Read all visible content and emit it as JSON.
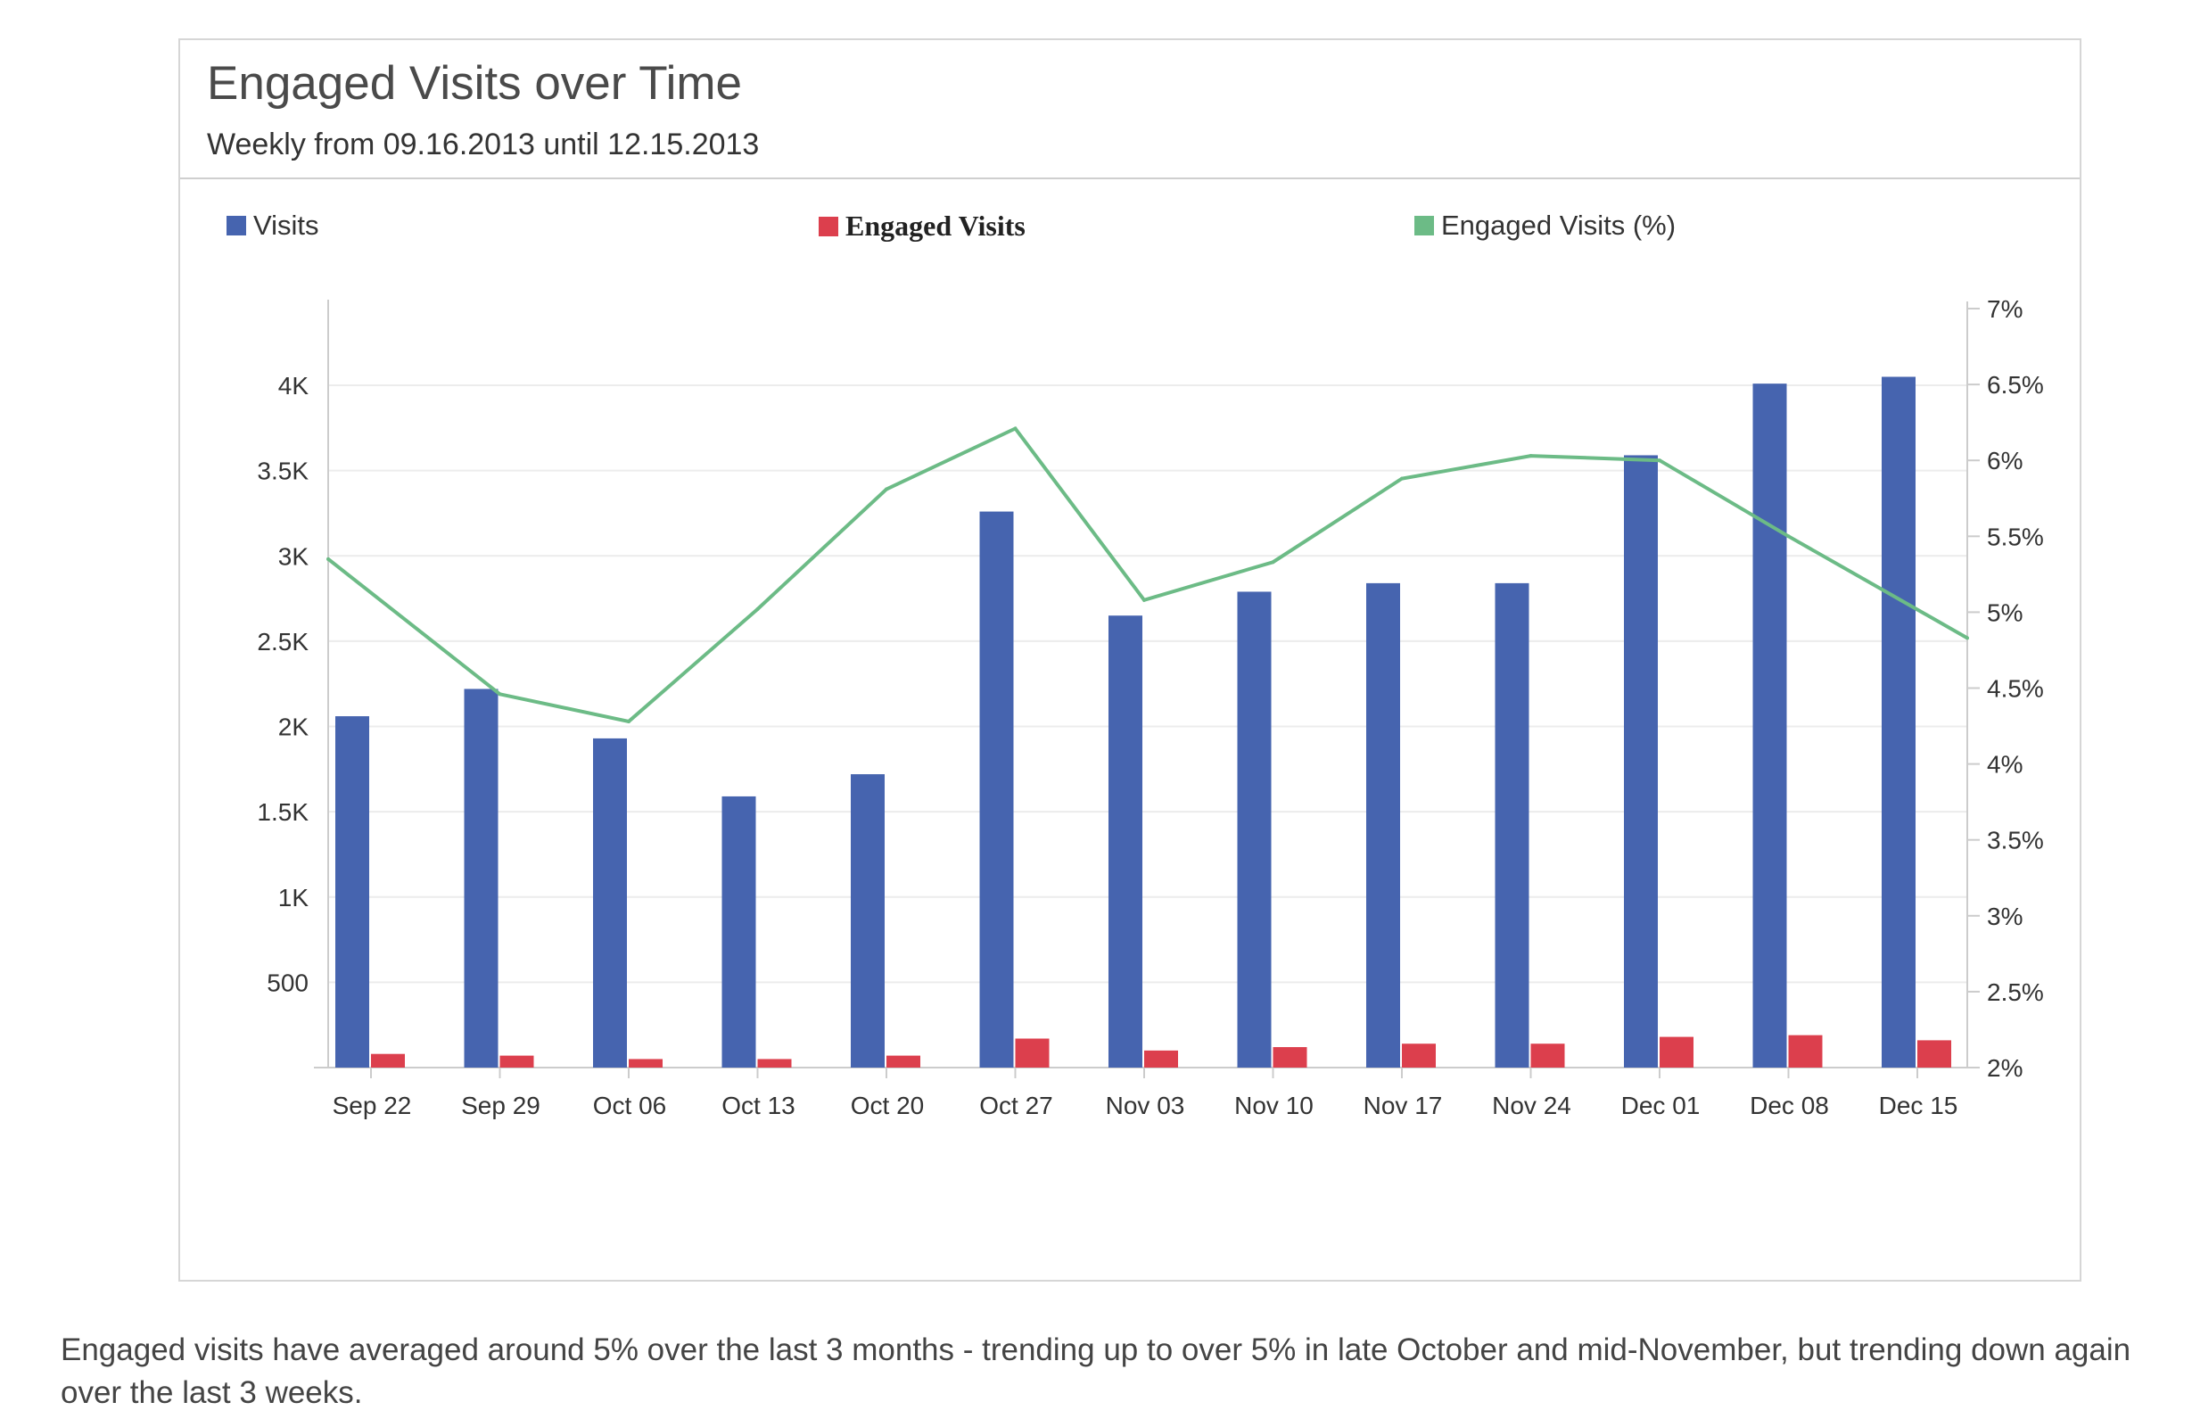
{
  "header": {
    "title": "Engaged Visits over Time",
    "subtitle": "Weekly from 09.16.2013 until 12.15.2013"
  },
  "legend": {
    "visits": "Visits",
    "engaged": "Engaged Visits",
    "engaged_pct": "Engaged Visits (%)"
  },
  "colors": {
    "visits": "#4664AF",
    "engaged": "#DC3F4D",
    "engaged_pct": "#6CBB86"
  },
  "caption": "Engaged visits have averaged around 5% over the last 3 months - trending up to over 5% in late October and mid-November, but trending down again over the last 3 weeks.",
  "chart_data": {
    "type": "bar",
    "categories": [
      "Sep 22",
      "Sep 29",
      "Oct 06",
      "Oct 13",
      "Oct 20",
      "Oct 27",
      "Nov 03",
      "Nov 10",
      "Nov 17",
      "Nov 24",
      "Dec 01",
      "Dec 08",
      "Dec 15"
    ],
    "series": [
      {
        "name": "Visits",
        "type": "bar",
        "axis": "left",
        "values": [
          2060,
          2220,
          1930,
          1590,
          1720,
          3260,
          2650,
          2790,
          2840,
          2840,
          3590,
          4010,
          4050
        ]
      },
      {
        "name": "Engaged Visits",
        "type": "bar",
        "axis": "left",
        "values": [
          80,
          70,
          50,
          50,
          70,
          170,
          100,
          120,
          140,
          140,
          180,
          190,
          160
        ]
      },
      {
        "name": "Engaged Visits (%)",
        "type": "line",
        "axis": "right",
        "values": [
          5.35,
          4.46,
          4.28,
          5.02,
          5.81,
          6.21,
          5.08,
          5.33,
          5.88,
          6.03,
          6.0,
          5.5,
          4.83
        ]
      }
    ],
    "left_axis": {
      "min": 0,
      "max": 4450,
      "ticks": [
        500,
        1000,
        1500,
        2000,
        2500,
        3000,
        3500,
        4000
      ],
      "tick_labels": [
        "500",
        "1K",
        "1.5K",
        "2K",
        "2.5K",
        "3K",
        "3.5K",
        "4K"
      ]
    },
    "right_axis": {
      "min": 2,
      "max": 7,
      "ticks": [
        2,
        2.5,
        3,
        3.5,
        4,
        4.5,
        5,
        5.5,
        6,
        6.5,
        7
      ],
      "tick_labels": [
        "2%",
        "2.5%",
        "3%",
        "3.5%",
        "4%",
        "4.5%",
        "5%",
        "5.5%",
        "6%",
        "6.5%",
        "7%"
      ]
    },
    "grid": true,
    "legend_position": "top"
  }
}
